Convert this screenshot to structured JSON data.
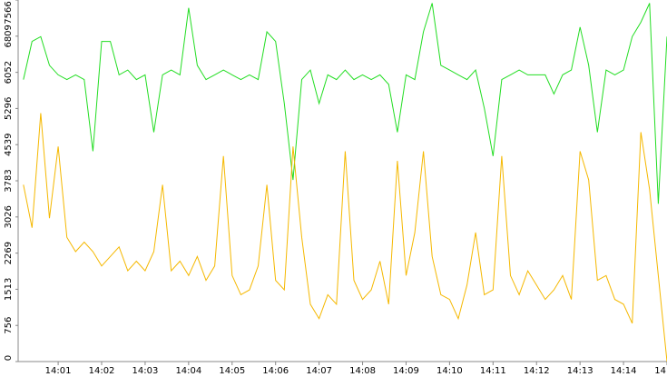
{
  "chart_data": {
    "type": "line",
    "x": [
      840.2,
      840.4,
      840.6,
      840.8,
      841.0,
      841.2,
      841.4,
      841.6,
      841.8,
      842.0,
      842.2,
      842.4,
      842.6,
      842.8,
      843.0,
      843.2,
      843.4,
      843.6,
      843.8,
      844.0,
      844.2,
      844.4,
      844.6,
      844.8,
      845.0,
      845.2,
      845.4,
      845.6,
      845.8,
      846.0,
      846.2,
      846.4,
      846.6,
      846.8,
      847.0,
      847.2,
      847.4,
      847.6,
      847.8,
      848.0,
      848.2,
      848.4,
      848.6,
      848.8,
      849.0,
      849.2,
      849.4,
      849.6,
      849.8,
      850.0,
      850.2,
      850.4,
      850.6,
      850.8,
      851.0,
      851.2,
      851.4,
      851.6,
      851.8,
      852.0,
      852.2,
      852.4,
      852.6,
      852.8,
      853.0,
      853.2,
      853.4,
      853.6,
      853.8,
      854.0,
      854.2,
      854.4,
      854.6,
      854.8,
      855.0
    ],
    "series": [
      {
        "color": "#22dd22",
        "values": [
          5900,
          6700,
          6800,
          6200,
          6000,
          5900,
          6000,
          5900,
          4400,
          6700,
          6700,
          6000,
          6100,
          5900,
          6000,
          4800,
          6000,
          6100,
          6000,
          7400,
          6200,
          5900,
          6000,
          6100,
          6000,
          5900,
          6000,
          5900,
          6900,
          6700,
          5400,
          3800,
          5900,
          6100,
          5400,
          6000,
          5900,
          6100,
          5900,
          6000,
          5900,
          6000,
          5800,
          4800,
          6000,
          5900,
          6900,
          7500,
          6200,
          6100,
          6000,
          5900,
          6100,
          5300,
          4300,
          5900,
          6000,
          6100,
          6000,
          6000,
          6000,
          5600,
          6000,
          6100,
          7000,
          6200,
          4800,
          6100,
          6000,
          6100,
          6800,
          7100,
          7500,
          3300,
          6800
        ]
      },
      {
        "color": "#f5b800",
        "values": [
          3700,
          2800,
          5200,
          3000,
          4500,
          2600,
          2300,
          2500,
          2300,
          2000,
          2200,
          2400,
          1900,
          2100,
          1900,
          2300,
          3700,
          1900,
          2100,
          1800,
          2200,
          1700,
          2000,
          4300,
          1800,
          1400,
          1500,
          2000,
          3700,
          1700,
          1500,
          4500,
          2600,
          1200,
          900,
          1400,
          1200,
          4400,
          1700,
          1300,
          1500,
          2100,
          1200,
          4200,
          1800,
          2700,
          4400,
          2200,
          1400,
          1300,
          900,
          1600,
          2700,
          1400,
          1500,
          4300,
          1800,
          1400,
          1900,
          1600,
          1300,
          1500,
          1800,
          1300,
          4400,
          3800,
          1700,
          1800,
          1300,
          1200,
          800,
          4800,
          3600,
          1800,
          0
        ]
      }
    ],
    "xlim": [
      840.08,
      855.0
    ],
    "xticks": [
      {
        "value": 841,
        "label": "14:01"
      },
      {
        "value": 842,
        "label": "14:02"
      },
      {
        "value": 843,
        "label": "14:03"
      },
      {
        "value": 844,
        "label": "14:04"
      },
      {
        "value": 845,
        "label": "14:05"
      },
      {
        "value": 846,
        "label": "14:06"
      },
      {
        "value": 847,
        "label": "14:07"
      },
      {
        "value": 848,
        "label": "14:08"
      },
      {
        "value": 849,
        "label": "14:09"
      },
      {
        "value": 850,
        "label": "14:10"
      },
      {
        "value": 851,
        "label": "14:11"
      },
      {
        "value": 852,
        "label": "14:12"
      },
      {
        "value": 853,
        "label": "14:13"
      },
      {
        "value": 854,
        "label": "14:14"
      },
      {
        "value": 855,
        "label": "14"
      }
    ],
    "ylim": [
      0,
      7566
    ],
    "yticks": [
      0,
      756,
      1513,
      2269,
      3026,
      3783,
      4539,
      5296,
      6052,
      6809,
      7566
    ]
  }
}
